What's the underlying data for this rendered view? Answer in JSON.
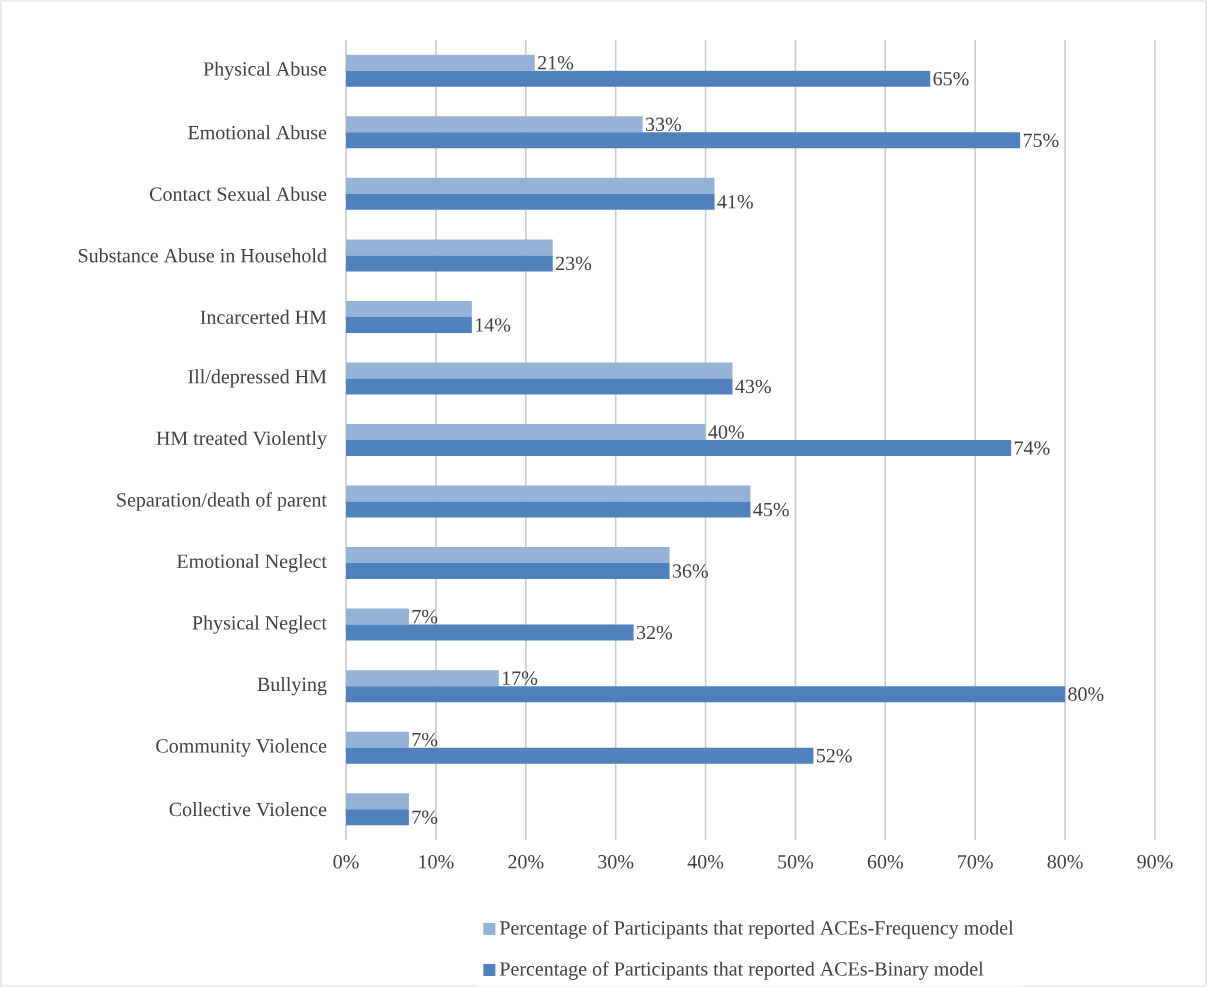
{
  "chart_data": {
    "type": "bar",
    "orientation": "horizontal",
    "categories": [
      "Physical Abuse",
      "Emotional Abuse",
      "Contact Sexual Abuse",
      "Substance Abuse in Household",
      "Incarcerted HM",
      "Ill/depressed HM",
      "HM treated Violently",
      "Separation/death of parent",
      "Emotional Neglect",
      "Physical Neglect",
      "Bullying",
      "Community Violence",
      "Collective Violence"
    ],
    "series": [
      {
        "name": "Percentage of Participants that reported ACEs-Frequency model",
        "color": "#95b3d7",
        "values": [
          21,
          33,
          41,
          23,
          14,
          43,
          40,
          45,
          36,
          7,
          17,
          7,
          7
        ],
        "value_labels": [
          "21%",
          "33%",
          null,
          null,
          null,
          null,
          "40%",
          null,
          null,
          "7%",
          "17%",
          "7%",
          null
        ]
      },
      {
        "name": "Percentage of Participants that reported ACEs-Binary model",
        "color": "#4f81bd",
        "values": [
          65,
          75,
          41,
          23,
          14,
          43,
          74,
          45,
          36,
          32,
          80,
          52,
          7
        ],
        "value_labels": [
          "65%",
          "75%",
          "41%",
          "23%",
          "14%",
          "43%",
          "74%",
          "45%",
          "36%",
          "32%",
          "80%",
          "52%",
          "7%"
        ]
      }
    ],
    "xlim": [
      0,
      90
    ],
    "xticks": [
      {
        "value": 0,
        "label": "0%"
      },
      {
        "value": 10,
        "label": "10%"
      },
      {
        "value": 20,
        "label": "20%"
      },
      {
        "value": 30,
        "label": "30%"
      },
      {
        "value": 40,
        "label": "40%"
      },
      {
        "value": 50,
        "label": "50%"
      },
      {
        "value": 60,
        "label": "60%"
      },
      {
        "value": 70,
        "label": "70%"
      },
      {
        "value": 80,
        "label": "80%"
      },
      {
        "value": 90,
        "label": "90%"
      }
    ],
    "grid": "x",
    "legend": "bottom"
  }
}
